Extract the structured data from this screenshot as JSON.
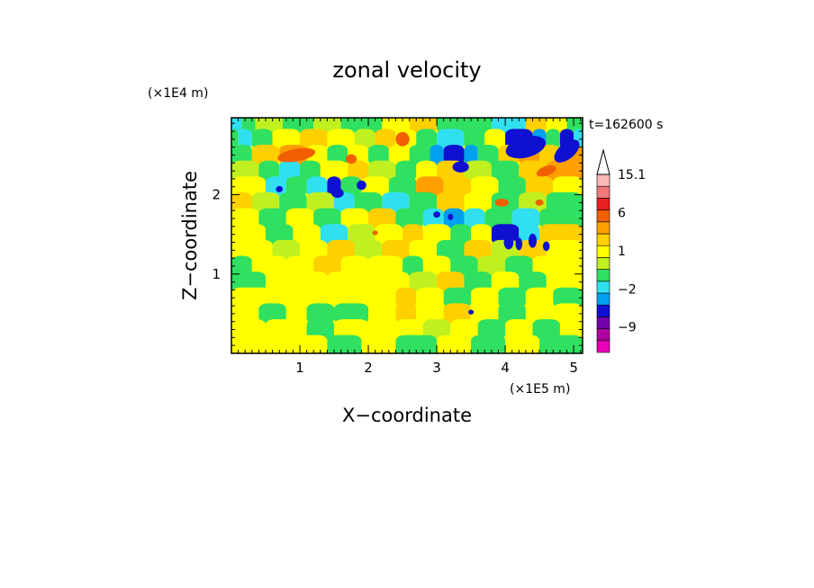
{
  "chart_data": {
    "type": "heatmap",
    "title": "zonal velocity",
    "xlabel": "X−coordinate",
    "ylabel": "Z−coordinate",
    "x_scale_label": "(×1E5 m)",
    "y_scale_label": "(×1E4 m)",
    "time_label": "t=162600 s",
    "xlim": [
      0,
      5.13
    ],
    "ylim": [
      0,
      2.97
    ],
    "x_ticks": [
      "1",
      "2",
      "3",
      "4",
      "5"
    ],
    "y_ticks": [
      "1",
      "2"
    ],
    "colorbar": {
      "labels": [
        "15.1",
        "6",
        "1",
        "−2",
        "−9"
      ],
      "label_values": [
        15.1,
        6,
        1,
        -2,
        -9
      ],
      "levels": [
        -15,
        -12,
        -9,
        -6,
        -3,
        -2,
        -1,
        0,
        1,
        2,
        3,
        6,
        9,
        12,
        15.1
      ],
      "colors": [
        "#e800b8",
        "#b000a0",
        "#7000a8",
        "#1010d0",
        "#00a0f0",
        "#30e0f0",
        "#30e060",
        "#c0f020",
        "#ffff00",
        "#ffd000",
        "#ffa000",
        "#f06000",
        "#e82020",
        "#f07878",
        "#f8b8b8"
      ]
    },
    "bands": [
      {
        "z": 2.9,
        "segs": [
          [
            0.0,
            0.15,
            5
          ],
          [
            0.15,
            0.35,
            6
          ],
          [
            0.35,
            0.75,
            7
          ],
          [
            0.75,
            1.2,
            6
          ],
          [
            1.2,
            1.6,
            7
          ],
          [
            1.6,
            2.2,
            6
          ],
          [
            2.2,
            2.6,
            8
          ],
          [
            2.6,
            3.0,
            9
          ],
          [
            3.0,
            3.8,
            6
          ],
          [
            3.8,
            4.3,
            5
          ],
          [
            4.3,
            4.6,
            9
          ],
          [
            4.6,
            4.9,
            8
          ],
          [
            4.9,
            5.13,
            6
          ]
        ]
      },
      {
        "z": 2.7,
        "segs": [
          [
            0.0,
            0.1,
            6
          ],
          [
            0.1,
            0.3,
            5
          ],
          [
            0.3,
            0.6,
            6
          ],
          [
            0.6,
            1.0,
            8
          ],
          [
            1.0,
            1.4,
            9
          ],
          [
            1.4,
            1.8,
            8
          ],
          [
            1.8,
            2.1,
            7
          ],
          [
            2.1,
            2.4,
            9
          ],
          [
            2.4,
            2.7,
            8
          ],
          [
            2.7,
            3.0,
            6
          ],
          [
            3.0,
            3.4,
            5
          ],
          [
            3.4,
            3.7,
            6
          ],
          [
            3.7,
            4.0,
            8
          ],
          [
            4.0,
            4.4,
            3
          ],
          [
            4.4,
            4.6,
            4
          ],
          [
            4.6,
            4.8,
            6
          ],
          [
            4.8,
            5.0,
            3
          ],
          [
            5.0,
            5.13,
            5
          ]
        ]
      },
      {
        "z": 2.5,
        "segs": [
          [
            0.0,
            0.3,
            6
          ],
          [
            0.3,
            0.7,
            9
          ],
          [
            0.7,
            1.1,
            10
          ],
          [
            1.1,
            1.4,
            8
          ],
          [
            1.4,
            1.7,
            6
          ],
          [
            1.7,
            2.0,
            8
          ],
          [
            2.0,
            2.3,
            6
          ],
          [
            2.3,
            2.6,
            8
          ],
          [
            2.6,
            2.9,
            6
          ],
          [
            2.9,
            3.1,
            4
          ],
          [
            3.1,
            3.4,
            3
          ],
          [
            3.4,
            3.6,
            4
          ],
          [
            3.6,
            3.9,
            6
          ],
          [
            3.9,
            4.2,
            9
          ],
          [
            4.2,
            4.5,
            10
          ],
          [
            4.5,
            4.8,
            9
          ],
          [
            4.8,
            5.13,
            10
          ]
        ]
      },
      {
        "z": 2.3,
        "segs": [
          [
            0.0,
            0.4,
            7
          ],
          [
            0.4,
            0.7,
            6
          ],
          [
            0.7,
            1.0,
            5
          ],
          [
            1.0,
            1.3,
            6
          ],
          [
            1.3,
            1.7,
            8
          ],
          [
            1.7,
            2.0,
            9
          ],
          [
            2.0,
            2.4,
            7
          ],
          [
            2.4,
            2.7,
            6
          ],
          [
            2.7,
            3.0,
            8
          ],
          [
            3.0,
            3.4,
            9
          ],
          [
            3.4,
            3.8,
            7
          ],
          [
            3.8,
            4.2,
            6
          ],
          [
            4.2,
            4.6,
            9
          ],
          [
            4.6,
            5.13,
            10
          ]
        ]
      },
      {
        "z": 2.1,
        "segs": [
          [
            0.0,
            0.5,
            8
          ],
          [
            0.5,
            0.8,
            5
          ],
          [
            0.8,
            1.1,
            6
          ],
          [
            1.1,
            1.4,
            5
          ],
          [
            1.4,
            1.6,
            3
          ],
          [
            1.6,
            1.9,
            6
          ],
          [
            1.9,
            2.3,
            8
          ],
          [
            2.3,
            2.7,
            6
          ],
          [
            2.7,
            3.1,
            10
          ],
          [
            3.1,
            3.5,
            9
          ],
          [
            3.5,
            3.9,
            8
          ],
          [
            3.9,
            4.3,
            6
          ],
          [
            4.3,
            4.7,
            9
          ],
          [
            4.7,
            5.13,
            8
          ]
        ]
      },
      {
        "z": 1.9,
        "segs": [
          [
            0.0,
            0.3,
            9
          ],
          [
            0.3,
            0.7,
            7
          ],
          [
            0.7,
            1.1,
            6
          ],
          [
            1.1,
            1.5,
            7
          ],
          [
            1.5,
            1.8,
            5
          ],
          [
            1.8,
            2.2,
            6
          ],
          [
            2.2,
            2.6,
            5
          ],
          [
            2.6,
            3.0,
            6
          ],
          [
            3.0,
            3.4,
            9
          ],
          [
            3.4,
            3.8,
            8
          ],
          [
            3.8,
            4.2,
            6
          ],
          [
            4.2,
            4.6,
            7
          ],
          [
            4.6,
            5.13,
            6
          ]
        ]
      },
      {
        "z": 1.7,
        "segs": [
          [
            0.0,
            0.4,
            8
          ],
          [
            0.4,
            0.8,
            6
          ],
          [
            0.8,
            1.2,
            8
          ],
          [
            1.2,
            1.6,
            6
          ],
          [
            1.6,
            2.0,
            8
          ],
          [
            2.0,
            2.4,
            9
          ],
          [
            2.4,
            2.8,
            6
          ],
          [
            2.8,
            3.1,
            5
          ],
          [
            3.1,
            3.4,
            4
          ],
          [
            3.4,
            3.7,
            5
          ],
          [
            3.7,
            4.1,
            6
          ],
          [
            4.1,
            4.5,
            5
          ],
          [
            4.5,
            5.13,
            6
          ]
        ]
      },
      {
        "z": 1.5,
        "segs": [
          [
            0.0,
            0.5,
            8
          ],
          [
            0.5,
            0.9,
            6
          ],
          [
            0.9,
            1.3,
            8
          ],
          [
            1.3,
            1.7,
            5
          ],
          [
            1.7,
            2.1,
            7
          ],
          [
            2.1,
            2.5,
            8
          ],
          [
            2.5,
            2.8,
            9
          ],
          [
            2.8,
            3.2,
            8
          ],
          [
            3.2,
            3.5,
            6
          ],
          [
            3.5,
            3.8,
            8
          ],
          [
            3.8,
            4.2,
            3
          ],
          [
            4.2,
            4.5,
            5
          ],
          [
            4.5,
            5.13,
            9
          ]
        ]
      },
      {
        "z": 1.3,
        "segs": [
          [
            0.0,
            0.6,
            8
          ],
          [
            0.6,
            1.0,
            7
          ],
          [
            1.0,
            1.4,
            8
          ],
          [
            1.4,
            1.8,
            9
          ],
          [
            1.8,
            2.2,
            7
          ],
          [
            2.2,
            2.6,
            9
          ],
          [
            2.6,
            3.0,
            8
          ],
          [
            3.0,
            3.4,
            6
          ],
          [
            3.4,
            3.8,
            9
          ],
          [
            3.8,
            4.2,
            7
          ],
          [
            4.2,
            4.6,
            9
          ],
          [
            4.6,
            5.13,
            8
          ]
        ]
      },
      {
        "z": 1.1,
        "segs": [
          [
            0.0,
            0.3,
            6
          ],
          [
            0.3,
            0.8,
            8
          ],
          [
            0.8,
            1.2,
            8
          ],
          [
            1.2,
            1.6,
            9
          ],
          [
            1.6,
            2.0,
            8
          ],
          [
            2.0,
            2.5,
            8
          ],
          [
            2.5,
            2.8,
            6
          ],
          [
            2.8,
            3.2,
            8
          ],
          [
            3.2,
            3.6,
            6
          ],
          [
            3.6,
            4.0,
            7
          ],
          [
            4.0,
            4.4,
            6
          ],
          [
            4.4,
            5.13,
            8
          ]
        ]
      },
      {
        "z": 0.9,
        "segs": [
          [
            0.0,
            0.5,
            6
          ],
          [
            0.5,
            1.0,
            8
          ],
          [
            1.0,
            1.4,
            8
          ],
          [
            1.4,
            1.8,
            8
          ],
          [
            1.8,
            2.2,
            8
          ],
          [
            2.2,
            2.6,
            8
          ],
          [
            2.6,
            3.0,
            7
          ],
          [
            3.0,
            3.4,
            9
          ],
          [
            3.4,
            3.8,
            6
          ],
          [
            3.8,
            4.2,
            8
          ],
          [
            4.2,
            4.6,
            6
          ],
          [
            4.6,
            5.13,
            8
          ]
        ]
      },
      {
        "z": 0.7,
        "segs": [
          [
            0.0,
            0.6,
            8
          ],
          [
            0.6,
            1.0,
            8
          ],
          [
            1.0,
            1.5,
            8
          ],
          [
            1.5,
            2.0,
            8
          ],
          [
            2.0,
            2.4,
            8
          ],
          [
            2.4,
            2.7,
            9
          ],
          [
            2.7,
            3.1,
            8
          ],
          [
            3.1,
            3.5,
            6
          ],
          [
            3.5,
            3.9,
            8
          ],
          [
            3.9,
            4.3,
            6
          ],
          [
            4.3,
            4.7,
            8
          ],
          [
            4.7,
            5.13,
            6
          ]
        ]
      },
      {
        "z": 0.5,
        "segs": [
          [
            0.0,
            0.4,
            8
          ],
          [
            0.4,
            0.8,
            6
          ],
          [
            0.8,
            1.1,
            8
          ],
          [
            1.1,
            1.5,
            6
          ],
          [
            1.5,
            2.0,
            6
          ],
          [
            2.0,
            2.4,
            8
          ],
          [
            2.4,
            2.7,
            9
          ],
          [
            2.7,
            3.1,
            8
          ],
          [
            3.1,
            3.5,
            9
          ],
          [
            3.5,
            3.9,
            8
          ],
          [
            3.9,
            4.3,
            6
          ],
          [
            4.3,
            4.7,
            8
          ],
          [
            4.7,
            5.13,
            8
          ]
        ]
      },
      {
        "z": 0.3,
        "segs": [
          [
            0.0,
            0.5,
            8
          ],
          [
            0.5,
            1.1,
            8
          ],
          [
            1.1,
            1.5,
            6
          ],
          [
            1.5,
            2.0,
            8
          ],
          [
            2.0,
            2.4,
            8
          ],
          [
            2.4,
            2.8,
            8
          ],
          [
            2.8,
            3.2,
            7
          ],
          [
            3.2,
            3.6,
            8
          ],
          [
            3.6,
            4.0,
            6
          ],
          [
            4.0,
            4.4,
            8
          ],
          [
            4.4,
            4.8,
            6
          ],
          [
            4.8,
            5.13,
            8
          ]
        ]
      },
      {
        "z": 0.1,
        "segs": [
          [
            0.0,
            0.5,
            8
          ],
          [
            0.5,
            1.0,
            8
          ],
          [
            1.0,
            1.4,
            8
          ],
          [
            1.4,
            1.9,
            6
          ],
          [
            1.9,
            2.4,
            8
          ],
          [
            2.4,
            3.0,
            6
          ],
          [
            3.0,
            3.5,
            8
          ],
          [
            3.5,
            4.0,
            6
          ],
          [
            4.0,
            4.5,
            8
          ],
          [
            4.5,
            5.13,
            6
          ]
        ]
      }
    ],
    "features": [
      {
        "x": 4.3,
        "z": 2.6,
        "rx": 0.3,
        "rz": 0.13,
        "rot": -15,
        "c": 3
      },
      {
        "x": 4.9,
        "z": 2.55,
        "rx": 0.22,
        "rz": 0.1,
        "rot": -40,
        "c": 3
      },
      {
        "x": 3.35,
        "z": 2.35,
        "rx": 0.12,
        "rz": 0.07,
        "rot": 0,
        "c": 3
      },
      {
        "x": 1.55,
        "z": 2.02,
        "rx": 0.09,
        "rz": 0.06,
        "rot": 0,
        "c": 3
      },
      {
        "x": 1.9,
        "z": 2.12,
        "rx": 0.07,
        "rz": 0.06,
        "rot": 0,
        "c": 3
      },
      {
        "x": 0.7,
        "z": 2.07,
        "rx": 0.05,
        "rz": 0.04,
        "rot": 0,
        "c": 3
      },
      {
        "x": 4.05,
        "z": 1.4,
        "rx": 0.07,
        "rz": 0.09,
        "rot": 0,
        "c": 3
      },
      {
        "x": 4.2,
        "z": 1.38,
        "rx": 0.05,
        "rz": 0.08,
        "rot": 0,
        "c": 3
      },
      {
        "x": 4.4,
        "z": 1.42,
        "rx": 0.06,
        "rz": 0.09,
        "rot": 0,
        "c": 3
      },
      {
        "x": 4.6,
        "z": 1.35,
        "rx": 0.05,
        "rz": 0.06,
        "rot": 0,
        "c": 3
      },
      {
        "x": 3.0,
        "z": 1.75,
        "rx": 0.05,
        "rz": 0.04,
        "rot": 0,
        "c": 3
      },
      {
        "x": 3.2,
        "z": 1.72,
        "rx": 0.04,
        "rz": 0.04,
        "rot": 0,
        "c": 3
      },
      {
        "x": 3.5,
        "z": 0.52,
        "rx": 0.04,
        "rz": 0.03,
        "rot": 0,
        "c": 3
      },
      {
        "x": 0.95,
        "z": 2.5,
        "rx": 0.28,
        "rz": 0.08,
        "rot": -10,
        "c": 11
      },
      {
        "x": 2.5,
        "z": 2.7,
        "rx": 0.1,
        "rz": 0.09,
        "rot": 0,
        "c": 11
      },
      {
        "x": 1.75,
        "z": 2.45,
        "rx": 0.08,
        "rz": 0.06,
        "rot": 0,
        "c": 11
      },
      {
        "x": 4.6,
        "z": 2.3,
        "rx": 0.15,
        "rz": 0.06,
        "rot": -20,
        "c": 11
      },
      {
        "x": 3.95,
        "z": 1.9,
        "rx": 0.1,
        "rz": 0.05,
        "rot": 0,
        "c": 11
      },
      {
        "x": 4.5,
        "z": 1.9,
        "rx": 0.06,
        "rz": 0.04,
        "rot": 0,
        "c": 11
      },
      {
        "x": 2.1,
        "z": 1.52,
        "rx": 0.04,
        "rz": 0.03,
        "rot": 0,
        "c": 11
      }
    ]
  }
}
